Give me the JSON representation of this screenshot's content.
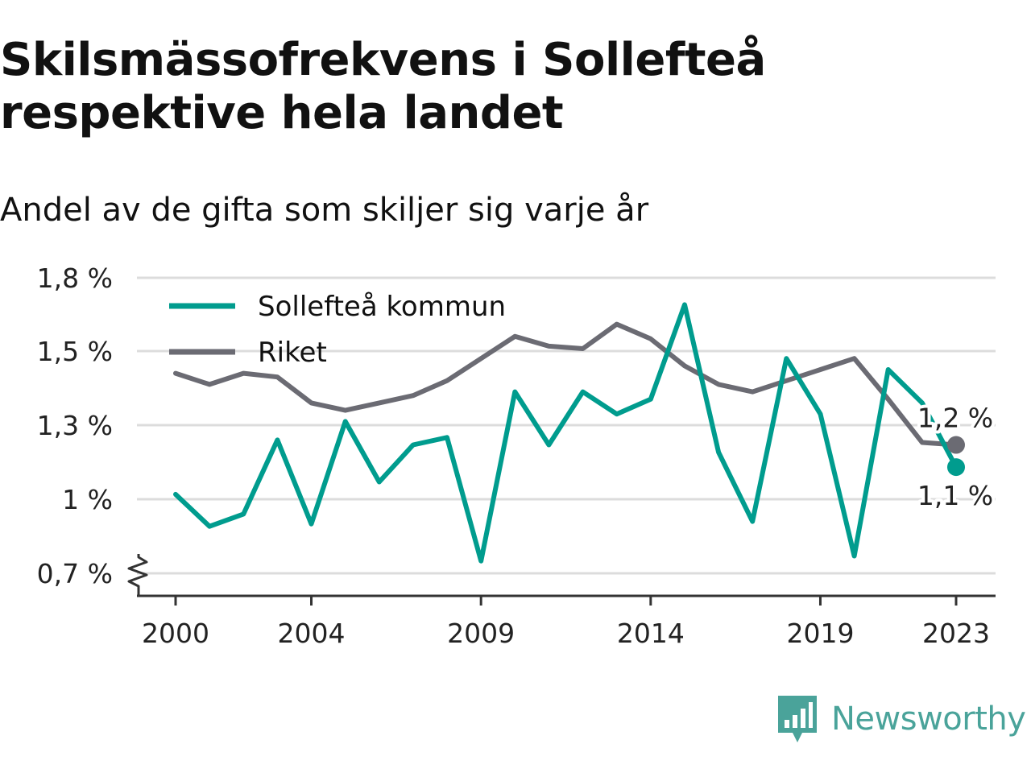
{
  "title": "Skilsmässofrekvens i Sollefteå respektive hela landet",
  "subtitle": "Andel av de gifta som skiljer sig varje år",
  "brand": {
    "name": "Newsworthy",
    "color": "#4aa39a",
    "icon": "bar-chart-speech-bubble-icon"
  },
  "chart_data": {
    "type": "line",
    "title": "Skilsmässofrekvens i Sollefteå respektive hela landet",
    "subtitle": "Andel av de gifta som skiljer sig varje år",
    "xlabel": "",
    "ylabel": "",
    "x": [
      2000,
      2001,
      2002,
      2003,
      2004,
      2005,
      2006,
      2007,
      2008,
      2009,
      2010,
      2011,
      2012,
      2013,
      2014,
      2015,
      2016,
      2017,
      2018,
      2019,
      2020,
      2021,
      2022,
      2023
    ],
    "xticks": [
      2000,
      2004,
      2009,
      2014,
      2019,
      2023
    ],
    "xlim": [
      2000,
      2023
    ],
    "ylim": [
      0.7,
      1.8
    ],
    "yticks": [
      0.7,
      1.0,
      1.3,
      1.5,
      1.8
    ],
    "ytick_labels": [
      "0,7 %",
      "1 %",
      "1,3 %",
      "1,5 %",
      "1,8 %"
    ],
    "y_axis_break": true,
    "grid": true,
    "legend_position": "top-left",
    "series": [
      {
        "name": "Sollefteå kommun",
        "color": "#009c8e",
        "values": [
          1.02,
          0.89,
          0.94,
          1.24,
          0.9,
          1.31,
          1.07,
          1.22,
          1.25,
          0.75,
          1.39,
          1.22,
          1.39,
          1.33,
          1.37,
          1.69,
          1.19,
          0.91,
          1.48,
          1.33,
          0.77,
          1.45,
          1.36,
          1.13
        ],
        "end_label": "1,1 %"
      },
      {
        "name": "Riket",
        "color": "#6b6b73",
        "values": [
          1.44,
          1.41,
          1.44,
          1.43,
          1.36,
          1.34,
          1.36,
          1.38,
          1.42,
          1.48,
          1.56,
          1.52,
          1.51,
          1.61,
          1.55,
          1.46,
          1.41,
          1.39,
          1.42,
          1.45,
          1.48,
          1.37,
          1.23,
          1.22
        ],
        "end_label": "1,2 %"
      }
    ]
  }
}
